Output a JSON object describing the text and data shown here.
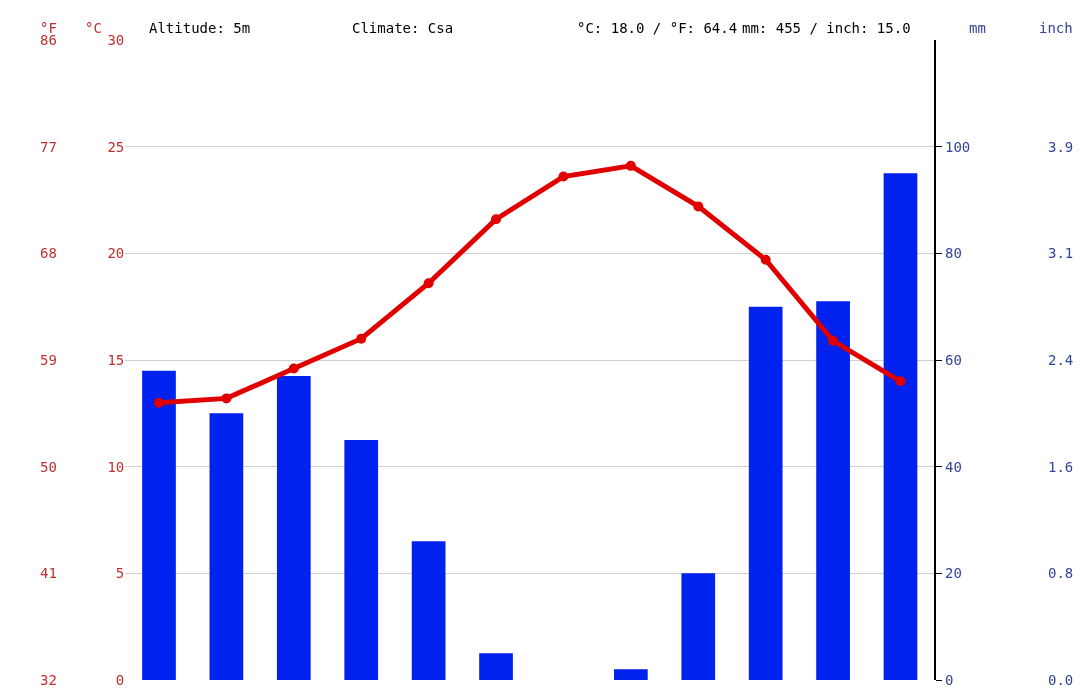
{
  "chart_data": {
    "type": "bar",
    "categories": [
      null,
      null,
      null,
      null,
      null,
      null,
      null,
      null,
      null,
      null,
      null,
      null
    ],
    "series": [
      {
        "axis": "y2",
        "color": "#0022ee",
        "values": [
          58,
          50,
          57,
          45,
          26,
          5,
          0,
          2,
          20,
          70,
          71,
          95
        ]
      },
      {
        "type": "line",
        "axis": "y",
        "color": "#e00000",
        "values": [
          13.0,
          13.2,
          14.6,
          16.0,
          18.6,
          21.6,
          23.6,
          24.1,
          22.2,
          19.7,
          15.9,
          14.0
        ]
      }
    ],
    "ylabel": "°C",
    "ylim": [
      0,
      30
    ],
    "yticks": [
      0,
      5,
      10,
      15,
      20,
      25,
      30
    ],
    "y3label": "°F",
    "y3lim": [
      32,
      86
    ],
    "y3ticks": [
      32,
      41,
      50,
      59,
      68,
      77,
      86
    ],
    "y2label": "mm",
    "y2lim": [
      0,
      120
    ],
    "y2ticks": [
      0,
      20,
      40,
      60,
      80,
      100
    ],
    "annotations": [
      "Altitude: 5m",
      "Climate: Csa",
      "°C: 18.0 / °F: 64.4",
      "mm: 455 / inch: 15.0",
      "inch",
      "0.0",
      "0.8",
      "1.6",
      "2.4",
      "3.1",
      "3.9"
    ],
    "grid": "y",
    "marker": "circle",
    "line_style": "solid"
  }
}
